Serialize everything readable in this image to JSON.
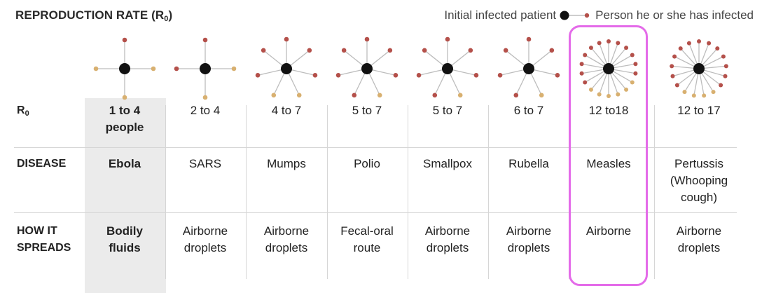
{
  "title": {
    "text": "REPRODUCTION RATE (R",
    "sub": "0",
    "close": ")"
  },
  "legend": {
    "initial": "Initial infected patient",
    "infected": "Person he or she has infected"
  },
  "colors": {
    "center": "#111111",
    "infected_red": "#b4504a",
    "infected_tan": "#d8b070",
    "line": "#bdbdbd",
    "highlight": "#e46be9",
    "shade": "#ebebeb"
  },
  "row_labels": {
    "r0": {
      "text": "R",
      "sub": "0"
    },
    "disease": "DISEASE",
    "spread": "HOW IT\nSPREADS"
  },
  "diseases": [
    {
      "r0": "1 to 4\npeople",
      "name": "Ebola",
      "spread": "Bodily\nfluids",
      "spokes": 4,
      "tan": [
        1,
        2,
        3
      ],
      "shaded": true
    },
    {
      "r0": "2 to 4",
      "name": "SARS",
      "spread": "Airborne\ndroplets",
      "spokes": 4,
      "tan": [
        1,
        2
      ]
    },
    {
      "r0": "4 to 7",
      "name": "Mumps",
      "spread": "Airborne\ndroplets",
      "spokes": 7,
      "tan": [
        3,
        4
      ]
    },
    {
      "r0": "5 to 7",
      "name": "Polio",
      "spread": "Fecal-oral\nroute",
      "spokes": 7,
      "tan": [
        3
      ]
    },
    {
      "r0": "5 to 7",
      "name": "Smallpox",
      "spread": "Airborne\ndroplets",
      "spokes": 7,
      "tan": [
        3
      ]
    },
    {
      "r0": "6 to 7",
      "name": "Rubella",
      "spread": "Airborne\ndroplets",
      "spokes": 7,
      "tan": [
        3
      ]
    },
    {
      "r0": "12 to18",
      "name": "Measles",
      "spread": "Airborne",
      "spokes": 18,
      "tan": [
        6,
        7,
        8,
        9,
        10,
        11
      ],
      "highlighted": true
    },
    {
      "r0": "12 to 17",
      "name": "Pertussis\n(Whooping\ncough)",
      "spread": "Airborne\ndroplets",
      "spokes": 17,
      "tan": [
        7,
        8,
        9,
        10
      ]
    }
  ]
}
